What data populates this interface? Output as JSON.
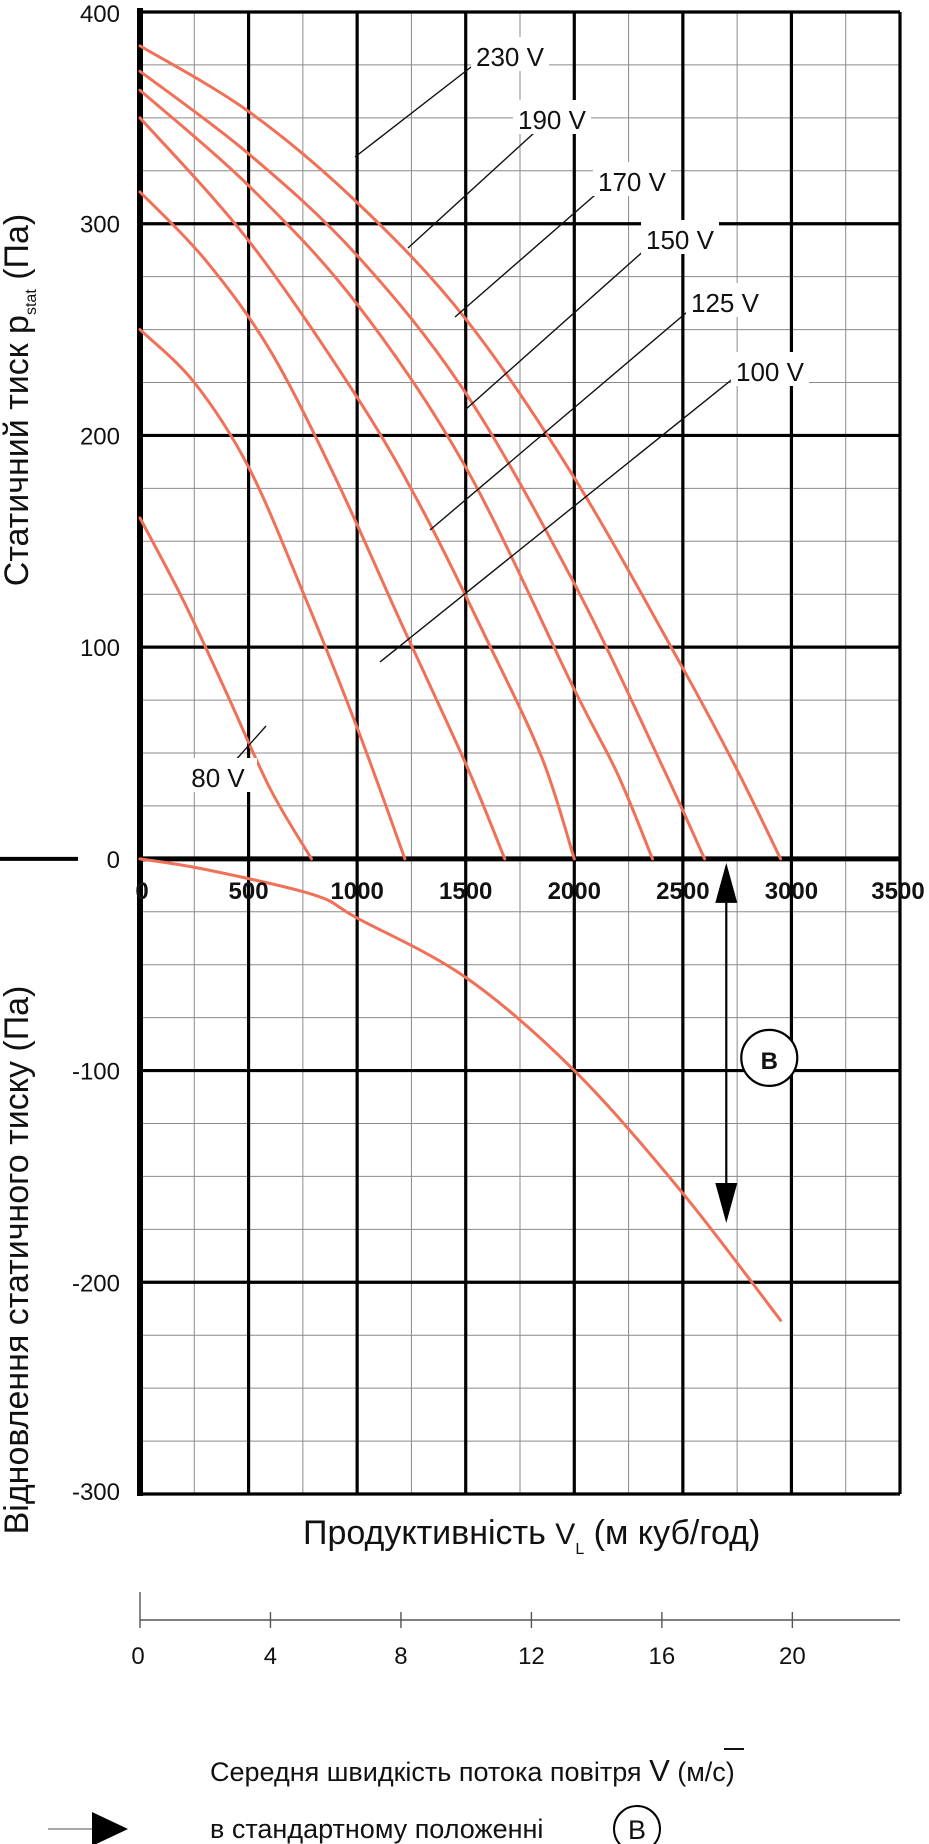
{
  "chart_data": {
    "type": "line",
    "y_axis_top_label": "Статичний тиск",
    "y_axis_top_symbol": "p",
    "y_axis_top_symbol_sub": "stat",
    "y_axis_top_unit": "(Па)",
    "y_axis_bottom_label": "Відновлення статичного тиску",
    "y_axis_bottom_unit": "(Па)",
    "xlabel": "Продуктивність",
    "xlabel_symbol": "V",
    "xlabel_symbol_sub": "L",
    "xlabel_unit": "(м куб/год)",
    "x_ticks": [
      "0",
      "500",
      "1000",
      "1500",
      "2000",
      "2500",
      "3000",
      "3500"
    ],
    "y_ticks": [
      "400",
      "300",
      "200",
      "100",
      "0",
      "-100",
      "-200",
      "-300"
    ],
    "xlim": [
      0,
      3500
    ],
    "ylim": [
      -300,
      400
    ],
    "grid": true,
    "series_color": "#f07058",
    "series": [
      {
        "name": "230 V",
        "x": [
          0,
          500,
          1000,
          1500,
          2000,
          2500,
          2750,
          2950
        ],
        "y": [
          384,
          353,
          310,
          255,
          180,
          90,
          42,
          0
        ]
      },
      {
        "name": "190 V",
        "x": [
          0,
          500,
          1000,
          1500,
          2000,
          2400,
          2600
        ],
        "y": [
          372,
          333,
          285,
          220,
          130,
          45,
          0
        ]
      },
      {
        "name": "170 V",
        "x": [
          0,
          500,
          1000,
          1500,
          2000,
          2200,
          2360
        ],
        "y": [
          363,
          318,
          262,
          185,
          80,
          40,
          0
        ]
      },
      {
        "name": "150 V",
        "x": [
          0,
          500,
          1000,
          1300,
          1600,
          1850,
          2000
        ],
        "y": [
          350,
          292,
          218,
          165,
          103,
          48,
          0
        ]
      },
      {
        "name": "125 V",
        "x": [
          0,
          300,
          600,
          900,
          1200,
          1500,
          1680
        ],
        "y": [
          315,
          283,
          240,
          180,
          112,
          45,
          0
        ]
      },
      {
        "name": "100 V",
        "x": [
          0,
          250,
          500,
          750,
          1000,
          1220
        ],
        "y": [
          250,
          225,
          185,
          126,
          62,
          0
        ]
      },
      {
        "name": "80 V",
        "x": [
          0,
          200,
          400,
          600,
          790
        ],
        "y": [
          161,
          122,
          78,
          33,
          0
        ]
      },
      {
        "name": "",
        "x": [
          0,
          300,
          800,
          1000,
          1500,
          2000,
          2500,
          2950
        ],
        "y": [
          0,
          -5,
          -17,
          -28,
          -56,
          -100,
          -158,
          -218
        ]
      }
    ],
    "curve_labels": [
      "230 V",
      "190 V",
      "170 V",
      "150 V",
      "125 V",
      "100 V",
      "80 V"
    ],
    "marker_label": "B",
    "velocity_axis_ticks": [
      "0",
      "4",
      "8",
      "12",
      "16",
      "20"
    ],
    "velocity_axis_values": [
      0,
      4,
      8,
      12,
      16,
      20
    ],
    "velocity_axis_max": 23.3
  },
  "legend": {
    "line1": "Середня швидкість потока повітря",
    "symbol": "V",
    "unit": "(м/с)",
    "line2": "в стандартному положенні",
    "marker": "B"
  }
}
